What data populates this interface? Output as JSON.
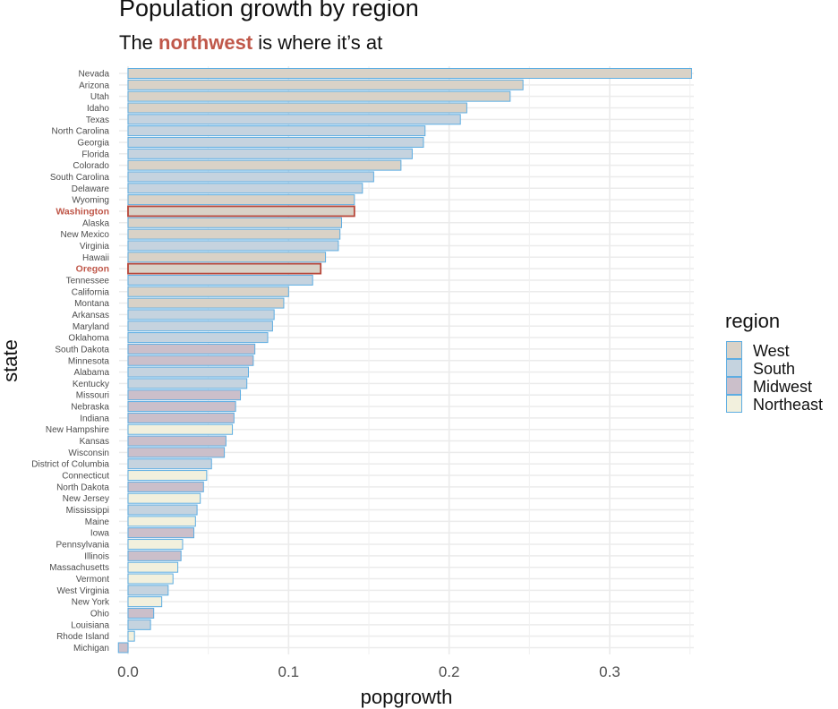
{
  "chart_data": {
    "type": "bar",
    "orientation": "horizontal",
    "title": "Population growth by region",
    "subtitle": {
      "before": "The ",
      "highlight": "northwest",
      "after": " is where it’s at"
    },
    "xlabel": "popgrowth",
    "ylabel": "state",
    "xlim": [
      -0.006,
      0.352
    ],
    "xticks": [
      0.0,
      0.1,
      0.2,
      0.3
    ],
    "xtick_labels": [
      "0.0",
      "0.1",
      "0.2",
      "0.3"
    ],
    "grid": true,
    "legend": {
      "title": "region",
      "placement": "right",
      "entries": [
        "West",
        "South",
        "Midwest",
        "Northeast"
      ]
    },
    "colors": {
      "West": "#d9d2c7",
      "South": "#c5d3df",
      "Midwest": "#cbbfca",
      "Northeast": "#f2f0dd",
      "outline": "#5dade2",
      "highlight_outline": "#b8483b",
      "highlight_text": "#c0584a"
    },
    "highlighted": [
      "Washington",
      "Oregon"
    ],
    "bars": [
      {
        "state": "Nevada",
        "region": "West",
        "value": 0.351
      },
      {
        "state": "Arizona",
        "region": "West",
        "value": 0.246
      },
      {
        "state": "Utah",
        "region": "West",
        "value": 0.238
      },
      {
        "state": "Idaho",
        "region": "West",
        "value": 0.211
      },
      {
        "state": "Texas",
        "region": "South",
        "value": 0.207
      },
      {
        "state": "North Carolina",
        "region": "South",
        "value": 0.185
      },
      {
        "state": "Georgia",
        "region": "South",
        "value": 0.184
      },
      {
        "state": "Florida",
        "region": "South",
        "value": 0.177
      },
      {
        "state": "Colorado",
        "region": "West",
        "value": 0.17
      },
      {
        "state": "South Carolina",
        "region": "South",
        "value": 0.153
      },
      {
        "state": "Delaware",
        "region": "South",
        "value": 0.146
      },
      {
        "state": "Wyoming",
        "region": "West",
        "value": 0.141
      },
      {
        "state": "Washington",
        "region": "West",
        "value": 0.141
      },
      {
        "state": "Alaska",
        "region": "West",
        "value": 0.133
      },
      {
        "state": "New Mexico",
        "region": "West",
        "value": 0.132
      },
      {
        "state": "Virginia",
        "region": "South",
        "value": 0.131
      },
      {
        "state": "Hawaii",
        "region": "West",
        "value": 0.123
      },
      {
        "state": "Oregon",
        "region": "West",
        "value": 0.12
      },
      {
        "state": "Tennessee",
        "region": "South",
        "value": 0.115
      },
      {
        "state": "California",
        "region": "West",
        "value": 0.1
      },
      {
        "state": "Montana",
        "region": "West",
        "value": 0.097
      },
      {
        "state": "Arkansas",
        "region": "South",
        "value": 0.091
      },
      {
        "state": "Maryland",
        "region": "South",
        "value": 0.09
      },
      {
        "state": "Oklahoma",
        "region": "South",
        "value": 0.087
      },
      {
        "state": "South Dakota",
        "region": "Midwest",
        "value": 0.079
      },
      {
        "state": "Minnesota",
        "region": "Midwest",
        "value": 0.078
      },
      {
        "state": "Alabama",
        "region": "South",
        "value": 0.075
      },
      {
        "state": "Kentucky",
        "region": "South",
        "value": 0.074
      },
      {
        "state": "Missouri",
        "region": "Midwest",
        "value": 0.07
      },
      {
        "state": "Nebraska",
        "region": "Midwest",
        "value": 0.067
      },
      {
        "state": "Indiana",
        "region": "Midwest",
        "value": 0.066
      },
      {
        "state": "New Hampshire",
        "region": "Northeast",
        "value": 0.065
      },
      {
        "state": "Kansas",
        "region": "Midwest",
        "value": 0.061
      },
      {
        "state": "Wisconsin",
        "region": "Midwest",
        "value": 0.06
      },
      {
        "state": "District of Columbia",
        "region": "South",
        "value": 0.052
      },
      {
        "state": "Connecticut",
        "region": "Northeast",
        "value": 0.049
      },
      {
        "state": "North Dakota",
        "region": "Midwest",
        "value": 0.047
      },
      {
        "state": "New Jersey",
        "region": "Northeast",
        "value": 0.045
      },
      {
        "state": "Mississippi",
        "region": "South",
        "value": 0.043
      },
      {
        "state": "Maine",
        "region": "Northeast",
        "value": 0.042
      },
      {
        "state": "Iowa",
        "region": "Midwest",
        "value": 0.041
      },
      {
        "state": "Pennsylvania",
        "region": "Northeast",
        "value": 0.034
      },
      {
        "state": "Illinois",
        "region": "Midwest",
        "value": 0.033
      },
      {
        "state": "Massachusetts",
        "region": "Northeast",
        "value": 0.031
      },
      {
        "state": "Vermont",
        "region": "Northeast",
        "value": 0.028
      },
      {
        "state": "West Virginia",
        "region": "South",
        "value": 0.025
      },
      {
        "state": "New York",
        "region": "Northeast",
        "value": 0.021
      },
      {
        "state": "Ohio",
        "region": "Midwest",
        "value": 0.016
      },
      {
        "state": "Louisiana",
        "region": "South",
        "value": 0.014
      },
      {
        "state": "Rhode Island",
        "region": "Northeast",
        "value": 0.004
      },
      {
        "state": "Michigan",
        "region": "Midwest",
        "value": -0.006
      }
    ]
  }
}
